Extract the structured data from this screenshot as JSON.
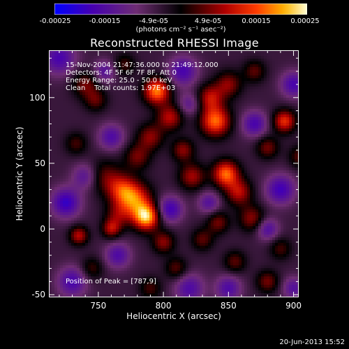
{
  "colorbar": {
    "tick_labels": [
      "-0.00025",
      "-0.00015",
      "-4.9e-05",
      "4.9e-05",
      "0.00015",
      "0.00025"
    ],
    "tick_values": [
      -0.00025,
      -0.00015,
      -4.9e-05,
      4.9e-05,
      0.00015,
      0.00025
    ],
    "range": [
      -0.00025,
      0.00025
    ],
    "units": "(photons cm⁻² s⁻¹ asec⁻²)",
    "colors": [
      "#0000ff",
      "#4a00b0",
      "#6e2a6e",
      "#000000",
      "#b40000",
      "#ff3c00",
      "#ffb400",
      "#ffffd2"
    ]
  },
  "info": {
    "line1": "15-Nov-2004 21:47:36.000 to 21:49:12.000",
    "line2": "Detectors: 4F 5F 6F 7F 8F, Att 0",
    "line3": "Energy Range: 25.0 - 50.0 keV",
    "line4": "Clean    Total counts: 1.97E+03",
    "peak": "Position of Peak = [787,9]"
  },
  "footer": {
    "date": "20-Jun-2013 15:52"
  },
  "chart_data": {
    "type": "heatmap",
    "title": "Reconstructed RHESSI Image",
    "xlabel": "Heliocentric X (arcsec)",
    "ylabel": "Heliocentric Y (arcsec)",
    "xlim": [
      712,
      904
    ],
    "ylim": [
      -52,
      136
    ],
    "xticks": [
      750,
      800,
      850,
      900
    ],
    "yticks": [
      -50,
      0,
      50,
      100
    ],
    "peak_position": [
      787,
      9
    ],
    "blobs": [
      {
        "x": 787,
        "y": 9,
        "amp": 1.0,
        "s": 7
      },
      {
        "x": 778,
        "y": 22,
        "amp": 0.75,
        "s": 9
      },
      {
        "x": 768,
        "y": 30,
        "amp": 0.55,
        "s": 8
      },
      {
        "x": 755,
        "y": 40,
        "amp": 0.35,
        "s": 9
      },
      {
        "x": 765,
        "y": 10,
        "amp": 0.35,
        "s": 7
      },
      {
        "x": 795,
        "y": 105,
        "amp": 0.9,
        "s": 7
      },
      {
        "x": 805,
        "y": 85,
        "amp": 0.55,
        "s": 7
      },
      {
        "x": 790,
        "y": 70,
        "amp": 0.45,
        "s": 7
      },
      {
        "x": 780,
        "y": 55,
        "amp": 0.4,
        "s": 7
      },
      {
        "x": 815,
        "y": 60,
        "amp": 0.45,
        "s": 6
      },
      {
        "x": 822,
        "y": 40,
        "amp": 0.5,
        "s": 7
      },
      {
        "x": 840,
        "y": 82,
        "amp": 0.85,
        "s": 8
      },
      {
        "x": 836,
        "y": 100,
        "amp": 0.55,
        "s": 7
      },
      {
        "x": 850,
        "y": 110,
        "amp": 0.45,
        "s": 7
      },
      {
        "x": 848,
        "y": 42,
        "amp": 0.85,
        "s": 7
      },
      {
        "x": 858,
        "y": 28,
        "amp": 0.55,
        "s": 7
      },
      {
        "x": 868,
        "y": 8,
        "amp": 0.45,
        "s": 7
      },
      {
        "x": 842,
        "y": 5,
        "amp": 0.4,
        "s": 6
      },
      {
        "x": 830,
        "y": -8,
        "amp": 0.35,
        "s": 6
      },
      {
        "x": 893,
        "y": 82,
        "amp": 0.7,
        "s": 6
      },
      {
        "x": 880,
        "y": 62,
        "amp": 0.4,
        "s": 6
      },
      {
        "x": 905,
        "y": 55,
        "amp": 0.35,
        "s": 6
      },
      {
        "x": 740,
        "y": 110,
        "amp": 0.4,
        "s": 7
      },
      {
        "x": 748,
        "y": 98,
        "amp": 0.35,
        "s": 6
      },
      {
        "x": 733,
        "y": 65,
        "amp": 0.3,
        "s": 6
      },
      {
        "x": 735,
        "y": -5,
        "amp": 0.55,
        "s": 5
      },
      {
        "x": 760,
        "y": 0,
        "amp": 0.5,
        "s": 5
      },
      {
        "x": 745,
        "y": -30,
        "amp": 0.3,
        "s": 6
      },
      {
        "x": 800,
        "y": -10,
        "amp": 0.45,
        "s": 6
      },
      {
        "x": 810,
        "y": -30,
        "amp": 0.35,
        "s": 6
      },
      {
        "x": 855,
        "y": -25,
        "amp": 0.35,
        "s": 6
      },
      {
        "x": 880,
        "y": -40,
        "amp": 0.4,
        "s": 6
      },
      {
        "x": 890,
        "y": -15,
        "amp": 0.3,
        "s": 6
      },
      {
        "x": 870,
        "y": 120,
        "amp": 0.35,
        "s": 6
      },
      {
        "x": 770,
        "y": 125,
        "amp": 0.3,
        "s": 6
      },
      {
        "x": 790,
        "y": -45,
        "amp": 0.3,
        "s": 6
      },
      {
        "x": 720,
        "y": 130,
        "amp": -0.5,
        "s": 9
      },
      {
        "x": 725,
        "y": 20,
        "amp": -0.6,
        "s": 8
      },
      {
        "x": 730,
        "y": -40,
        "amp": -0.5,
        "s": 8
      },
      {
        "x": 805,
        "y": 15,
        "amp": -0.55,
        "s": 7
      },
      {
        "x": 815,
        "y": 120,
        "amp": -0.5,
        "s": 8
      },
      {
        "x": 870,
        "y": 80,
        "amp": -0.5,
        "s": 7
      },
      {
        "x": 890,
        "y": 30,
        "amp": -0.55,
        "s": 8
      },
      {
        "x": 880,
        "y": 0,
        "amp": -0.45,
        "s": 6
      },
      {
        "x": 760,
        "y": 70,
        "amp": -0.45,
        "s": 7
      },
      {
        "x": 740,
        "y": 40,
        "amp": -0.4,
        "s": 7
      },
      {
        "x": 820,
        "y": -45,
        "amp": -0.45,
        "s": 8
      },
      {
        "x": 850,
        "y": -45,
        "amp": -0.45,
        "s": 7
      },
      {
        "x": 900,
        "y": 110,
        "amp": -0.5,
        "s": 7
      },
      {
        "x": 835,
        "y": 20,
        "amp": -0.4,
        "s": 6
      },
      {
        "x": 765,
        "y": -20,
        "amp": -0.45,
        "s": 7
      },
      {
        "x": 820,
        "y": 95,
        "amp": -0.35,
        "s": 6
      },
      {
        "x": 755,
        "y": 120,
        "amp": -0.4,
        "s": 6
      },
      {
        "x": 900,
        "y": -45,
        "amp": -0.4,
        "s": 6
      }
    ]
  }
}
